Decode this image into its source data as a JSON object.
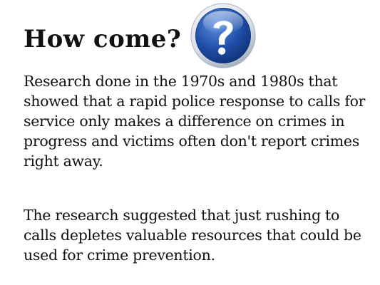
{
  "slide": {
    "title": "How come?",
    "icon": "question-mark-icon",
    "paragraphs": [
      "Research done in the 1970s and 1980s that showed that a rapid police response to calls for service only makes a difference on crimes in progress and victims often don't report crimes right away.",
      "The research suggested that just rushing to calls depletes valuable resources that could be used for crime prevention."
    ]
  },
  "colors": {
    "icon_blue": "#1f4fa8",
    "icon_ring": "#c7cfd9",
    "text": "#111111"
  }
}
